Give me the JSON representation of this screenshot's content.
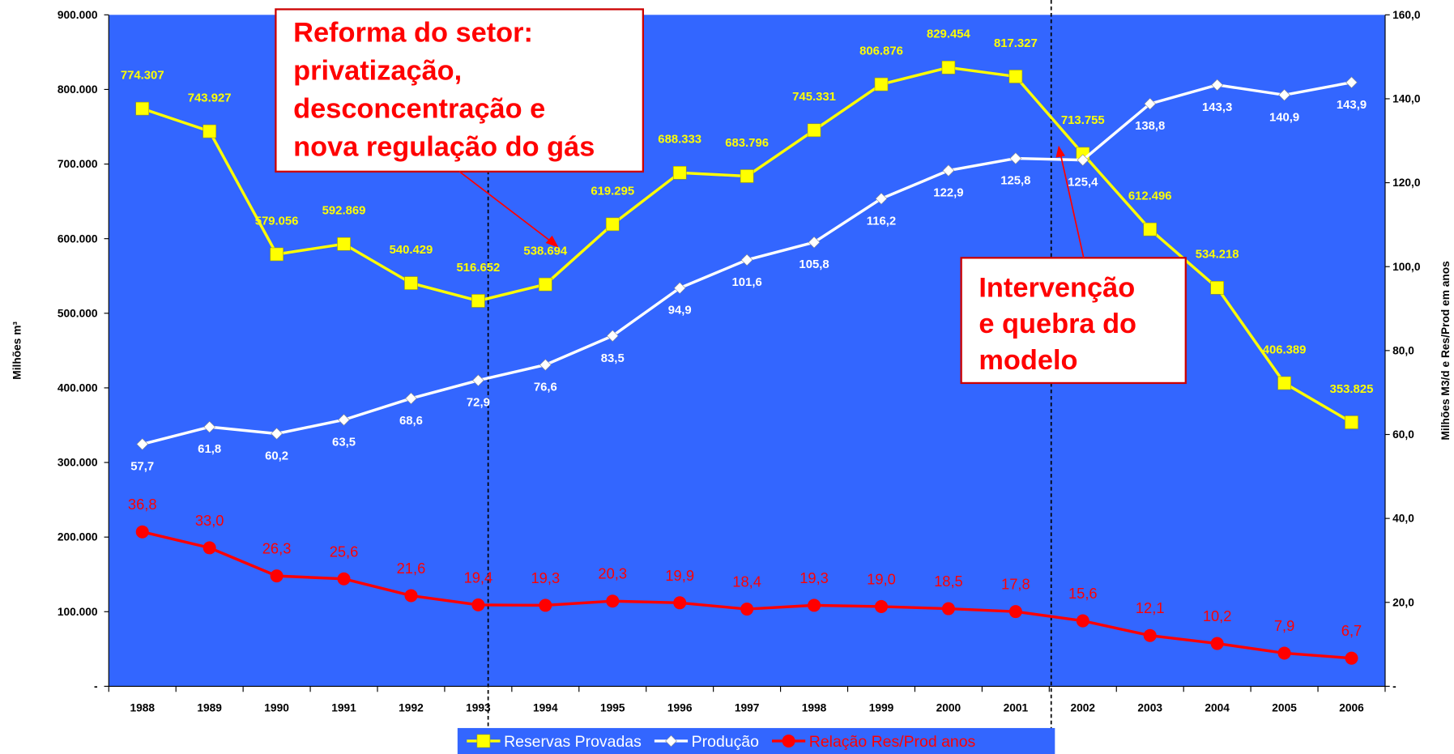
{
  "chart_data": {
    "type": "line",
    "categories": [
      "1988",
      "1989",
      "1990",
      "1991",
      "1992",
      "1993",
      "1994",
      "1995",
      "1996",
      "1997",
      "1998",
      "1999",
      "2000",
      "2001",
      "2002",
      "2003",
      "2004",
      "2005",
      "2006"
    ],
    "series": [
      {
        "name": "Reservas Provadas",
        "color": "#ffff00",
        "marker": "square",
        "values": [
          774307,
          743927,
          579056,
          592869,
          540429,
          516652,
          538694,
          619295,
          688333,
          683796,
          745331,
          806876,
          829454,
          817327,
          713755,
          612496,
          534218,
          406389,
          353825
        ],
        "value_labels": [
          "774.307",
          "743.927",
          "579.056",
          "592.869",
          "540.429",
          "516.652",
          "538.694",
          "619.295",
          "688.333",
          "683.796",
          "745.331",
          "806.876",
          "829.454",
          "817.327",
          "713.755",
          "612.496",
          "534.218",
          "406.389",
          "353.825"
        ]
      },
      {
        "name": "Produção",
        "color": "#ffffff",
        "marker": "diamond",
        "axis": "y2",
        "values": [
          57.7,
          61.8,
          60.2,
          63.5,
          68.6,
          72.9,
          76.6,
          83.5,
          94.9,
          101.6,
          105.8,
          116.2,
          122.9,
          125.8,
          125.4,
          138.8,
          143.3,
          140.9,
          143.9
        ],
        "value_labels": [
          "57,7",
          "61,8",
          "60,2",
          "63,5",
          "68,6",
          "72,9",
          "76,6",
          "83,5",
          "94,9",
          "101,6",
          "105,8",
          "116,2",
          "122,9",
          "125,8",
          "125,4",
          "138,8",
          "143,3",
          "140,9",
          "143,9"
        ]
      },
      {
        "name": "Relação Res/Prod anos",
        "color": "#ff0000",
        "marker": "circle",
        "axis": "y2",
        "values": [
          36.8,
          33.0,
          26.3,
          25.6,
          21.6,
          19.4,
          19.3,
          20.3,
          19.9,
          18.4,
          19.3,
          19.0,
          18.5,
          17.8,
          15.6,
          12.1,
          10.2,
          7.9,
          6.7
        ],
        "value_labels": [
          "36,8",
          "33,0",
          "26,3",
          "25,6",
          "21,6",
          "19,4",
          "19,3",
          "20,3",
          "19,9",
          "18,4",
          "19,3",
          "19,0",
          "18,5",
          "17,8",
          "15,6",
          "12,1",
          "10,2",
          "7,9",
          "6,7"
        ]
      }
    ],
    "ylabel": "Milhões m³",
    "y2label": "Milhões M3/d e Res/Prod em anos",
    "ylim": [
      0,
      900000
    ],
    "yticks": [
      {
        "value": 0,
        "label": "-"
      },
      {
        "value": 100000,
        "label": "100.000"
      },
      {
        "value": 200000,
        "label": "200.000"
      },
      {
        "value": 300000,
        "label": "300.000"
      },
      {
        "value": 400000,
        "label": "400.000"
      },
      {
        "value": 500000,
        "label": "500.000"
      },
      {
        "value": 600000,
        "label": "600.000"
      },
      {
        "value": 700000,
        "label": "700.000"
      },
      {
        "value": 800000,
        "label": "800.000"
      },
      {
        "value": 900000,
        "label": "900.000"
      }
    ],
    "y2lim": [
      0,
      160
    ],
    "y2ticks": [
      {
        "value": 0,
        "label": "-"
      },
      {
        "value": 20,
        "label": "20,0"
      },
      {
        "value": 40,
        "label": "40,0"
      },
      {
        "value": 60,
        "label": "60,0"
      },
      {
        "value": 80,
        "label": "80,0"
      },
      {
        "value": 100,
        "label": "100,0"
      },
      {
        "value": 120,
        "label": "120,0"
      },
      {
        "value": 140,
        "label": "140,0"
      },
      {
        "value": 160,
        "label": "160,0"
      }
    ],
    "legend": "bottom",
    "annotations": [
      {
        "lines": [
          "Reforma do setor:",
          "privatização,",
          "desconcentração e",
          "nova regulação do gás"
        ]
      },
      {
        "lines": [
          "Intervenção",
          "e quebra do",
          "modelo"
        ]
      }
    ]
  }
}
